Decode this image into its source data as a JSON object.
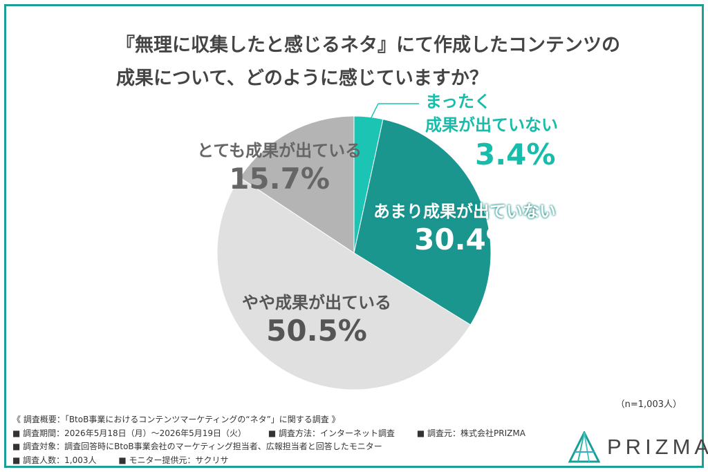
{
  "title": {
    "line1": "『無理に収集したと感じるネタ』にて作成したコンテンツの",
    "line2": "成果について、どのように感じていますか？"
  },
  "chart_data": {
    "type": "pie",
    "categories": [
      "まったく成果が出ていない",
      "あまり成果が出ていない",
      "やや成果が出ている",
      "とても成果が出ている"
    ],
    "values": [
      3.4,
      30.4,
      50.5,
      15.7
    ],
    "colors": [
      "#1cc4b3",
      "#1a968f",
      "#e0e0e0",
      "#b4b4b4"
    ],
    "labels": [
      {
        "line1": "まったく",
        "line2": "成果が出ていない",
        "pct": "3.4%"
      },
      {
        "text": "あまり成果が出ていない",
        "pct": "30.4%"
      },
      {
        "text": "やや成果が出ている",
        "pct": "50.5%"
      },
      {
        "text": "とても成果が出ている",
        "pct": "15.7%"
      }
    ]
  },
  "n_label": "（n=1,003人）",
  "overview": {
    "heading": "《 調査概要：「BtoB事業におけるコンテンツマーケティングの“ネタ”」に関する調査 》",
    "period": "■ 調査期間：2026年5月18日（月）～2026年5月19日（火）",
    "method": "■ 調査方法：インターネット調査",
    "source": "■ 調査元：株式会社PRIZMA",
    "target": "■ 調査対象：調査回答時にBtoB事業会社のマーケティング担当者、広報担当者と回答したモニター",
    "count": "■ 調査人数：1,003人",
    "provider": "■ モニター提供元：サクリサ"
  },
  "logo": {
    "text": "PRIZMA",
    "icon": "prizma-logo-icon"
  }
}
